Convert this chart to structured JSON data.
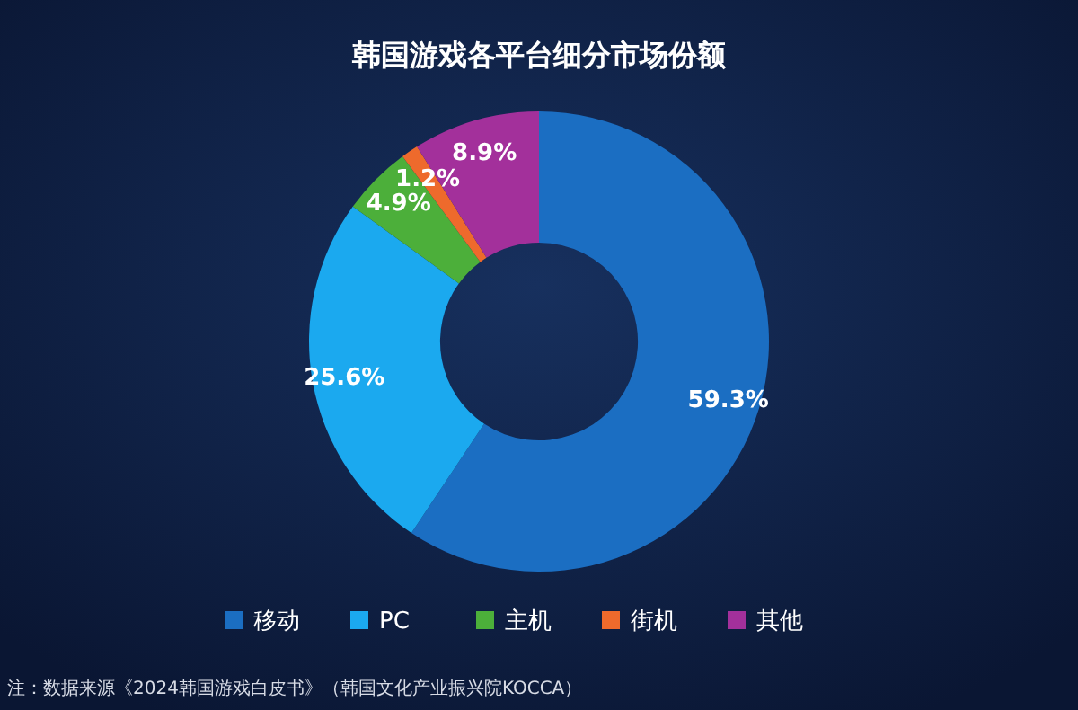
{
  "chart_data": {
    "type": "donut",
    "title": "韩国游戏各平台细分市场份额",
    "categories": [
      "移动",
      "PC",
      "主机",
      "街机",
      "其他"
    ],
    "values": [
      59.3,
      25.6,
      4.9,
      1.2,
      8.9
    ],
    "colors": [
      "#1b6ec2",
      "#1ba9ef",
      "#4caf3a",
      "#ee6a2c",
      "#a3309b"
    ],
    "value_labels": [
      "59.3%",
      "25.6%",
      "4.9%",
      "1.2%",
      "8.9%"
    ],
    "legend": "bottom",
    "annotations": [
      "注：数据来源《2024韩国游戏白皮书》（韩国文化产业振兴院KOCCA）"
    ]
  }
}
